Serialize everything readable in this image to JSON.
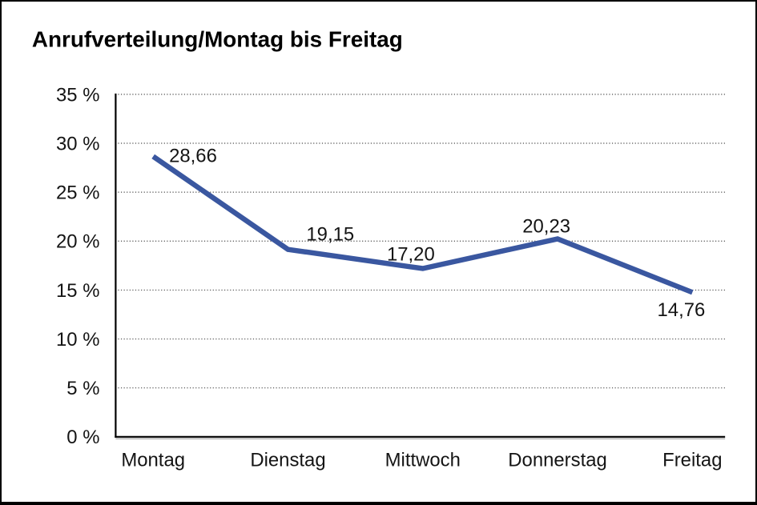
{
  "chart_data": {
    "type": "line",
    "title": "Anrufverteilung/Montag bis Freitag",
    "categories": [
      "Montag",
      "Dienstag",
      "Mittwoch",
      "Donnerstag",
      "Freitag"
    ],
    "series": [
      {
        "name": "Anrufverteilung",
        "values": [
          28.66,
          19.15,
          17.2,
          20.23,
          14.76
        ]
      }
    ],
    "data_labels": [
      "28,66",
      "19,15",
      "17,20",
      "20,23",
      "14,76"
    ],
    "xlabel": "",
    "ylabel": "",
    "ylim": [
      0,
      35
    ],
    "y_tick_step": 5,
    "y_tick_labels": [
      "0 %",
      "5 %",
      "10 %",
      "15 %",
      "20 %",
      "25 %",
      "30 %",
      "35 %"
    ],
    "grid": "horizontal-dotted",
    "legend": "none",
    "colors": {
      "line": "#3A57A0",
      "axis": "#000000",
      "grid": "#4a4a4a",
      "text": "#141414",
      "background": "#ffffff",
      "border": "#000000"
    }
  }
}
